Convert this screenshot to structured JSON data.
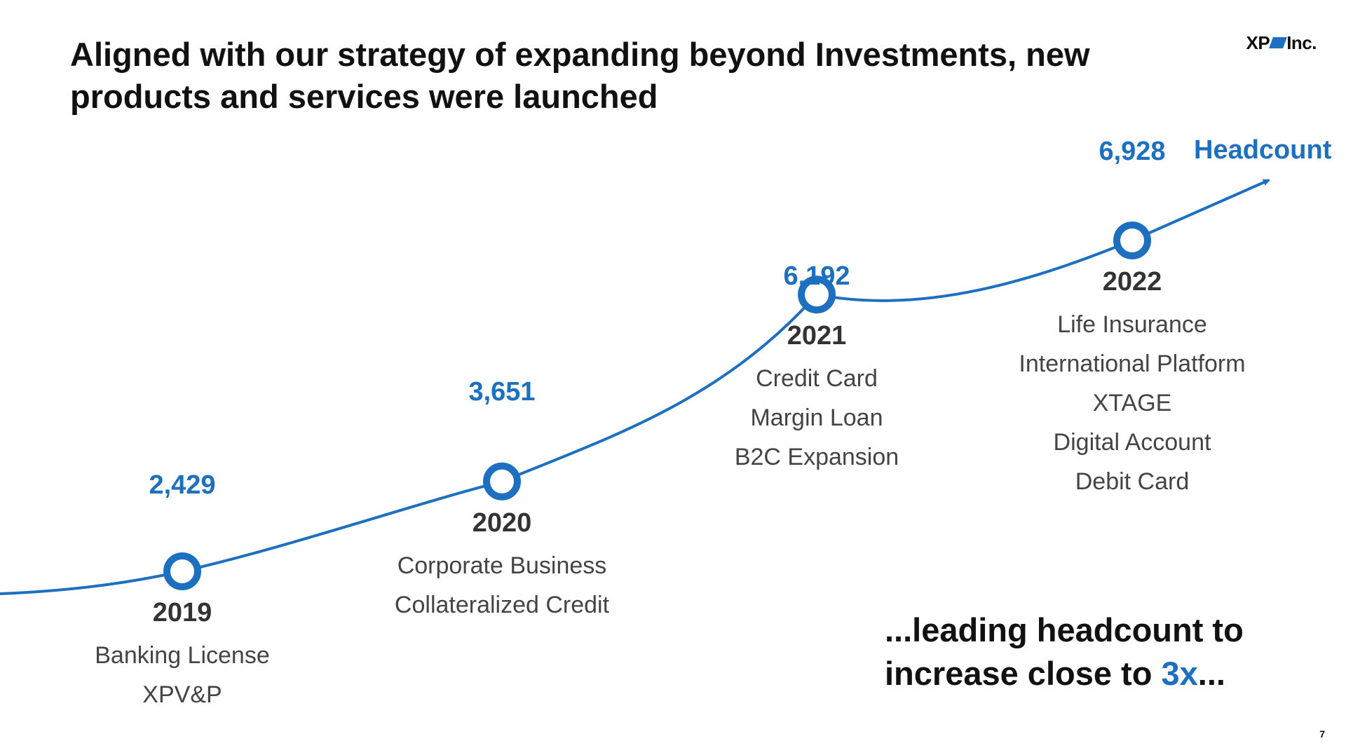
{
  "header": {
    "title": "Aligned with our strategy of expanding beyond Investments, new products and services were launched",
    "logo_left": "XP",
    "logo_right": "Inc."
  },
  "tagline": {
    "line1": "...leading headcount to",
    "line2_prefix": "increase close to ",
    "line2_accent": "3x",
    "line2_suffix": "..."
  },
  "page_number": "7",
  "colors": {
    "accent": "#1d6fc0",
    "text_dark": "#111111",
    "text_muted": "#444444"
  },
  "chart_data": {
    "type": "line",
    "title": "",
    "series_label": "Headcount",
    "x": [
      "2019",
      "2020",
      "2021",
      "2022"
    ],
    "values": [
      2429,
      3651,
      6192,
      6928
    ],
    "value_labels": [
      "2,429",
      "3,651",
      "6,192",
      "6,928"
    ],
    "launches": [
      [
        "Banking License",
        "XPV&P"
      ],
      [
        "Corporate Business",
        "Collateralized Credit"
      ],
      [
        "Credit Card",
        "Margin Loan",
        "B2C Expansion"
      ],
      [
        "Life Insurance",
        "International Platform",
        "XTAGE",
        "Digital Account",
        "Debit Card"
      ]
    ],
    "grid": false,
    "axes_visible": false,
    "legend": "none"
  }
}
